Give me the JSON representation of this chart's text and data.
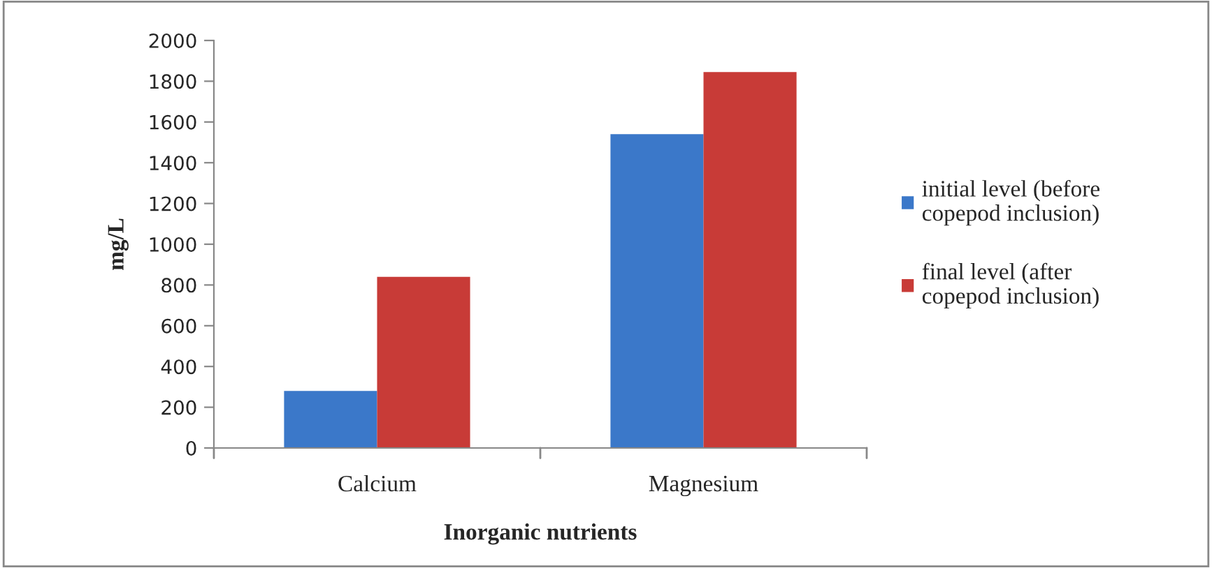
{
  "chart_data": {
    "type": "bar",
    "xlabel": "Inorganic nutrients",
    "ylabel": "mg/L",
    "categories": [
      "Calcium",
      "Magnesium"
    ],
    "series": [
      {
        "name": "initial level (before\ncopepod inclusion)",
        "color": "#3b78c9",
        "values": [
          280,
          1540
        ]
      },
      {
        "name": "final level (after\ncopepod inclusion)",
        "color": "#c83b37",
        "values": [
          840,
          1845
        ]
      }
    ],
    "ylim": [
      0,
      2000
    ],
    "yticks": [
      0,
      200,
      400,
      600,
      800,
      1000,
      1200,
      1400,
      1600,
      1800,
      2000
    ],
    "grid": false,
    "legend": "right"
  }
}
